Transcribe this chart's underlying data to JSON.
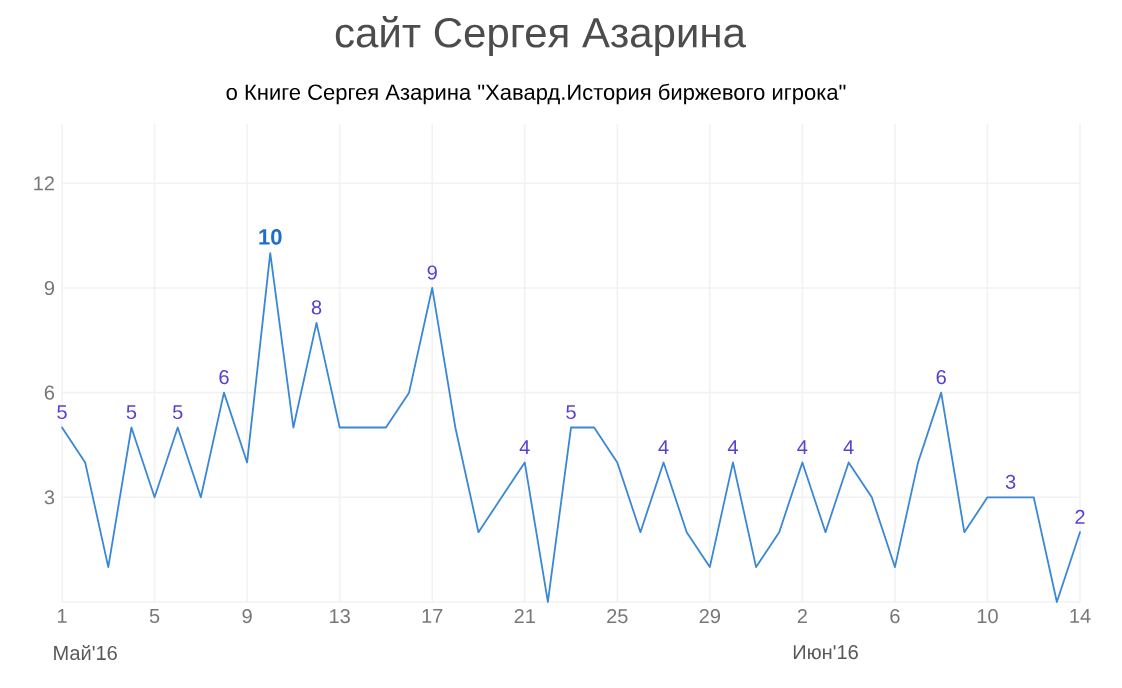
{
  "chart_data": {
    "type": "line",
    "title": "сайт Сергея Азарина",
    "subtitle": "о Книге Сергея Азарина \"Хавард.История биржевого игрока\"",
    "x": [
      "2016-05-01",
      "2016-05-02",
      "2016-05-03",
      "2016-05-04",
      "2016-05-05",
      "2016-05-06",
      "2016-05-07",
      "2016-05-08",
      "2016-05-09",
      "2016-05-10",
      "2016-05-11",
      "2016-05-12",
      "2016-05-13",
      "2016-05-14",
      "2016-05-15",
      "2016-05-16",
      "2016-05-17",
      "2016-05-18",
      "2016-05-19",
      "2016-05-20",
      "2016-05-21",
      "2016-05-22",
      "2016-05-23",
      "2016-05-24",
      "2016-05-25",
      "2016-05-26",
      "2016-05-27",
      "2016-05-28",
      "2016-05-29",
      "2016-05-30",
      "2016-05-31",
      "2016-06-01",
      "2016-06-02",
      "2016-06-03",
      "2016-06-04",
      "2016-06-05",
      "2016-06-06",
      "2016-06-07",
      "2016-06-08",
      "2016-06-09",
      "2016-06-10",
      "2016-06-11",
      "2016-06-12",
      "2016-06-13",
      "2016-06-14"
    ],
    "values": [
      5,
      4,
      1,
      5,
      3,
      5,
      3,
      6,
      4,
      10,
      5,
      8,
      5,
      5,
      5,
      6,
      9,
      5,
      2,
      3,
      4,
      0,
      5,
      5,
      4,
      2,
      4,
      2,
      1,
      4,
      1,
      2,
      4,
      2,
      4,
      3,
      1,
      4,
      6,
      2,
      3,
      3,
      3,
      0,
      2
    ],
    "value_labels": [
      "5",
      null,
      null,
      "5",
      null,
      "5",
      null,
      "6",
      null,
      "10",
      null,
      "8",
      null,
      null,
      null,
      null,
      "9",
      null,
      null,
      null,
      "4",
      null,
      "5",
      null,
      null,
      null,
      "4",
      null,
      null,
      "4",
      null,
      null,
      "4",
      null,
      "4",
      null,
      null,
      null,
      "6",
      null,
      null,
      "3",
      null,
      null,
      "2"
    ],
    "color": "#3a87d6",
    "xlim": [
      "2016-05-01",
      "2016-06-14"
    ],
    "xticks": [
      {
        "value": "2016-05-01",
        "label": "1"
      },
      {
        "value": "2016-05-05",
        "label": "5"
      },
      {
        "value": "2016-05-09",
        "label": "9"
      },
      {
        "value": "2016-05-13",
        "label": "13"
      },
      {
        "value": "2016-05-17",
        "label": "17"
      },
      {
        "value": "2016-05-21",
        "label": "21"
      },
      {
        "value": "2016-05-25",
        "label": "25"
      },
      {
        "value": "2016-05-29",
        "label": "29"
      },
      {
        "value": "2016-06-02",
        "label": "2"
      },
      {
        "value": "2016-06-06",
        "label": "6"
      },
      {
        "value": "2016-06-10",
        "label": "10"
      },
      {
        "value": "2016-06-14",
        "label": "14"
      }
    ],
    "ylim": [
      0,
      13.7
    ],
    "yticks": [
      {
        "value": 0,
        "label": null
      },
      3,
      6,
      9,
      12
    ],
    "annotations": [
      "Май'16",
      "Июн'16"
    ],
    "grid": true
  }
}
